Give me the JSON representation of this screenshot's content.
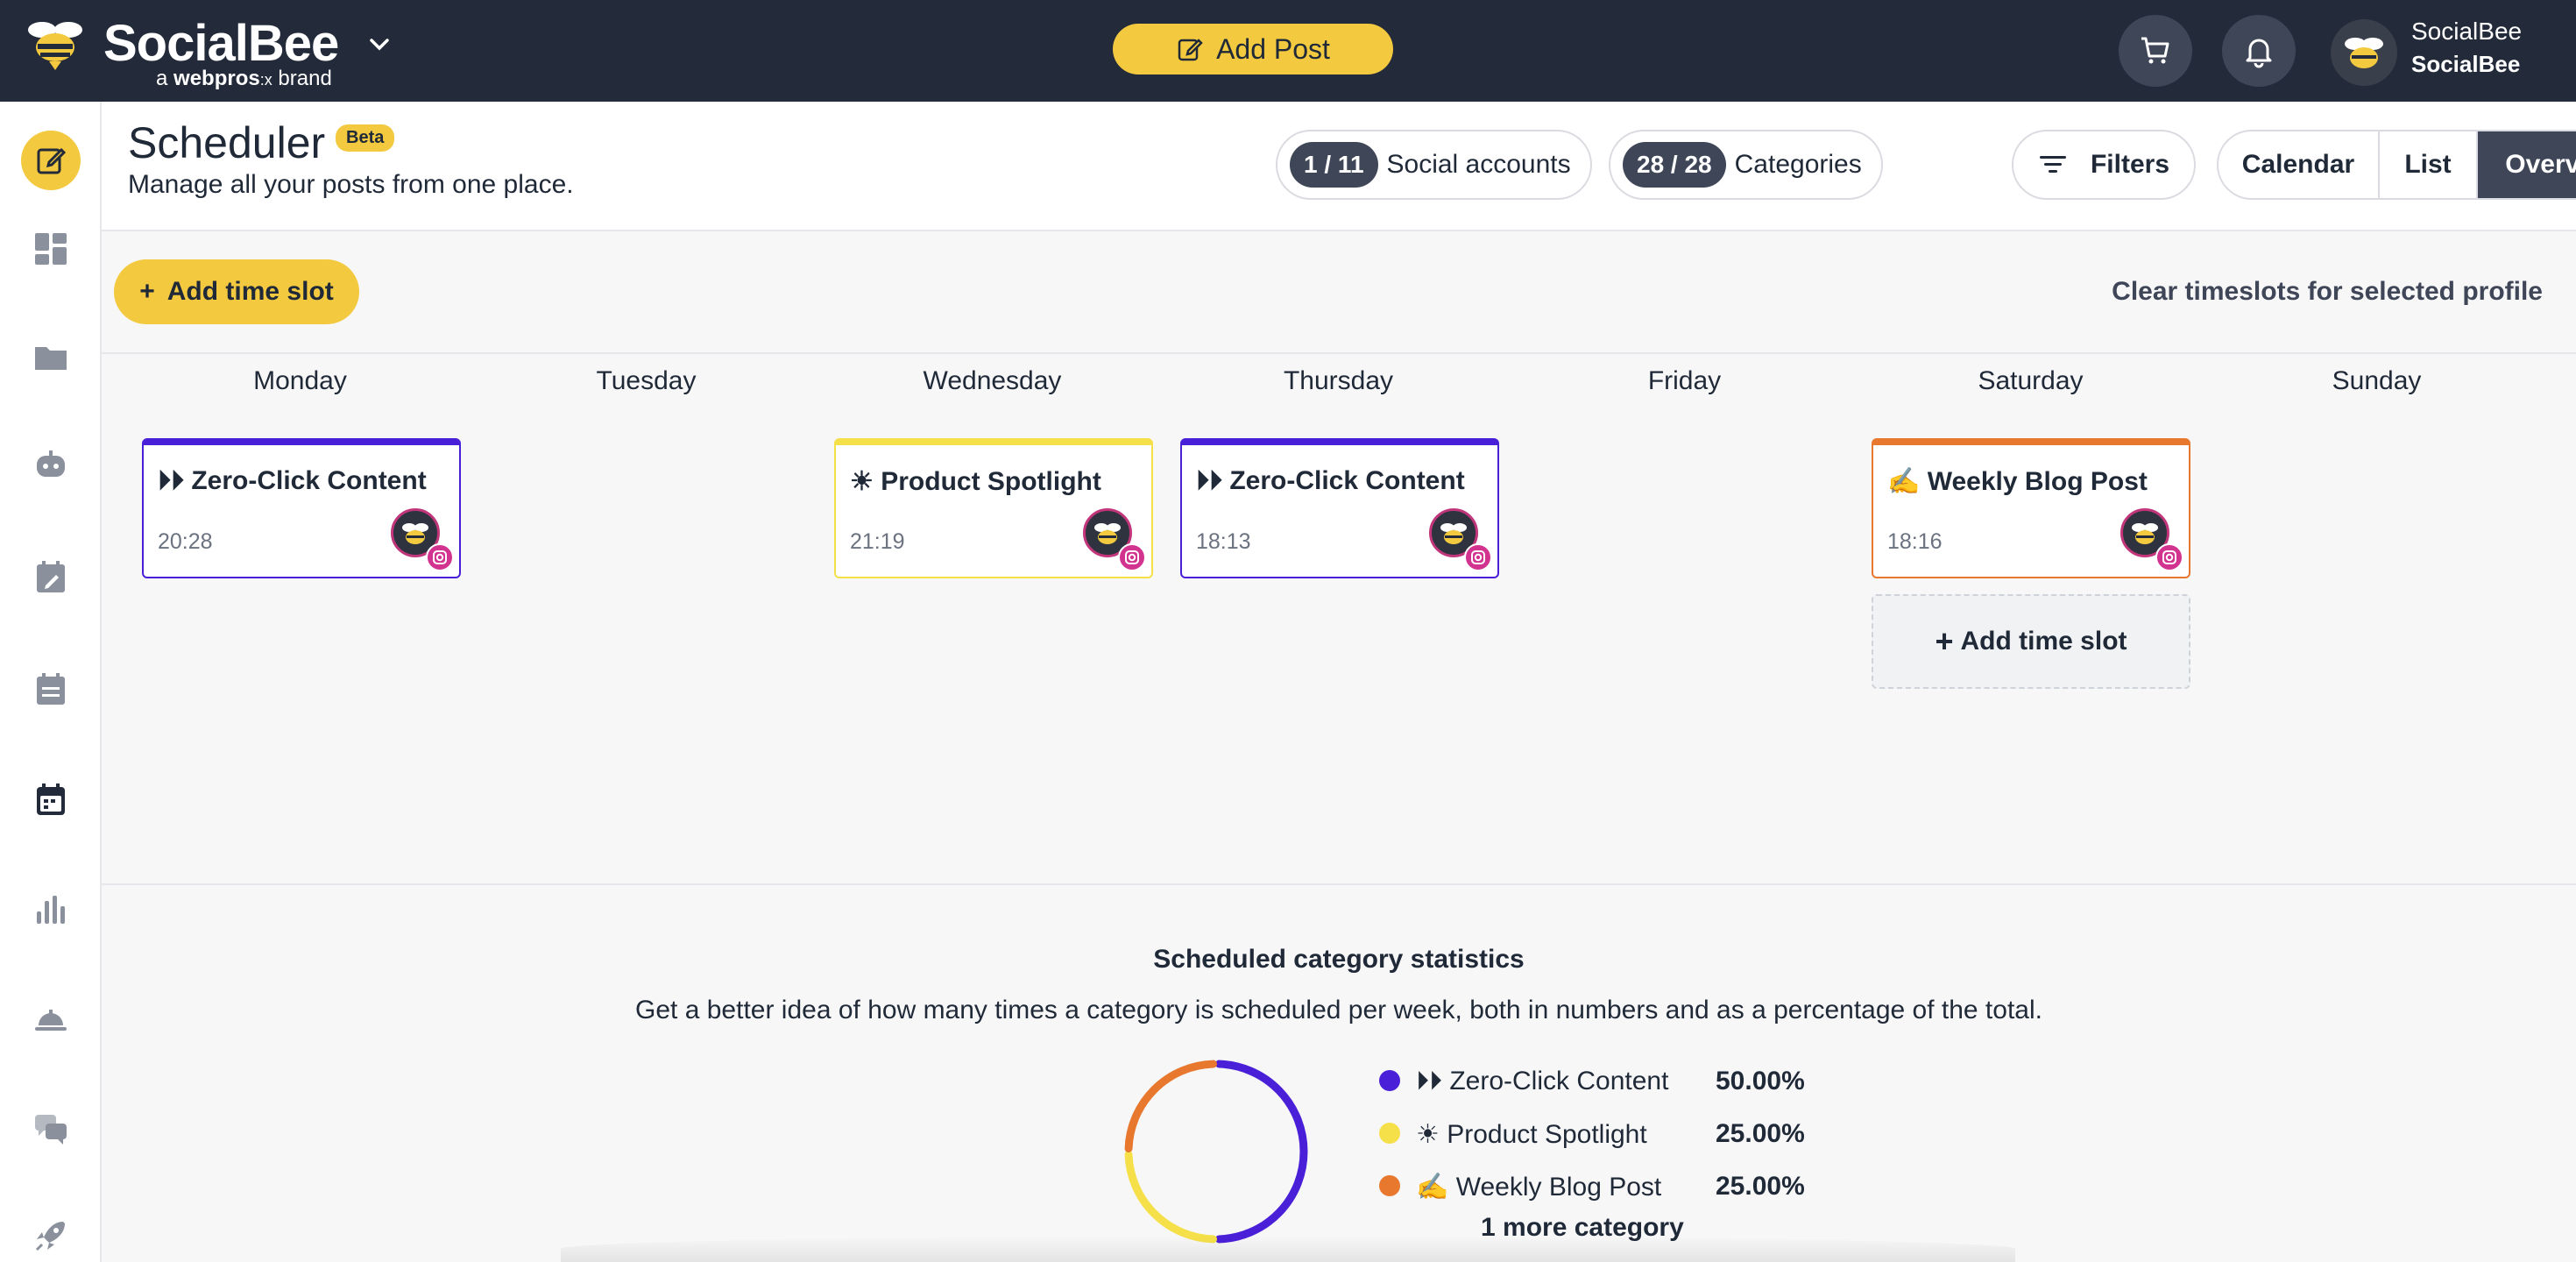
{
  "brand": {
    "name": "SocialBee",
    "sub_prefix": "a",
    "sub_brand": "webpros",
    "sub_suffix": "brand"
  },
  "topbar": {
    "add_post_label": "Add Post",
    "cart_icon": "cart-icon",
    "bell_icon": "bell-icon",
    "user_name": "SocialBee",
    "user_workspace": "SocialBee"
  },
  "sidebar": {
    "items": [
      {
        "icon": "compose-icon",
        "active": true
      },
      {
        "icon": "dashboard-icon"
      },
      {
        "icon": "folder-icon"
      },
      {
        "icon": "bot-icon"
      },
      {
        "icon": "calendar-edit-icon"
      },
      {
        "icon": "calendar-list-icon"
      },
      {
        "icon": "calendar-icon"
      },
      {
        "icon": "analytics-icon"
      },
      {
        "icon": "concierge-bell-icon"
      },
      {
        "icon": "chat-icon"
      },
      {
        "icon": "rocket-icon"
      }
    ]
  },
  "header": {
    "title": "Scheduler",
    "badge": "Beta",
    "subtitle": "Manage all your posts from one place.",
    "social_accounts_count": "1 / 11",
    "social_accounts_label": "Social accounts",
    "categories_count": "28 / 28",
    "categories_label": "Categories",
    "filters_label": "Filters",
    "views": [
      "Calendar",
      "List",
      "Overview"
    ],
    "active_view": "Overview"
  },
  "toolbar": {
    "add_slot_label": "Add time slot",
    "clear_label": "Clear timeslots for selected profile"
  },
  "days": [
    "Monday",
    "Tuesday",
    "Wednesday",
    "Thursday",
    "Friday",
    "Saturday",
    "Sunday"
  ],
  "slots": [
    {
      "day": "Monday",
      "title": "⏵⏵ Zero-Click Content",
      "time": "20:28",
      "color": "#4a1fd8"
    },
    {
      "day": "Wednesday",
      "title": "☀ Product Spotlight",
      "time": "21:19",
      "color": "#f5e04a"
    },
    {
      "day": "Thursday",
      "title": "⏵⏵ Zero-Click Content",
      "time": "18:13",
      "color": "#4a1fd8"
    },
    {
      "day": "Saturday",
      "title": "✍ Weekly Blog Post",
      "time": "18:16",
      "color": "#e8782e"
    }
  ],
  "saturday_add_label": "Add time slot",
  "stats": {
    "title": "Scheduled category statistics",
    "description": "Get a better idea of how many times a category is scheduled per week, both in numbers and as a percentage of the total.",
    "more_label": "1 more category"
  },
  "chart_data": {
    "type": "pie",
    "title": "",
    "categories": [
      "⏵⏵ Zero-Click Content",
      "☀ Product Spotlight",
      "✍ Weekly Blog Post"
    ],
    "values": [
      50,
      25,
      25
    ],
    "value_labels": [
      "50.00%",
      "25.00%",
      "25.00%"
    ],
    "colors": [
      "#4a1fd8",
      "#f5e04a",
      "#e8782e"
    ],
    "donut": true
  }
}
